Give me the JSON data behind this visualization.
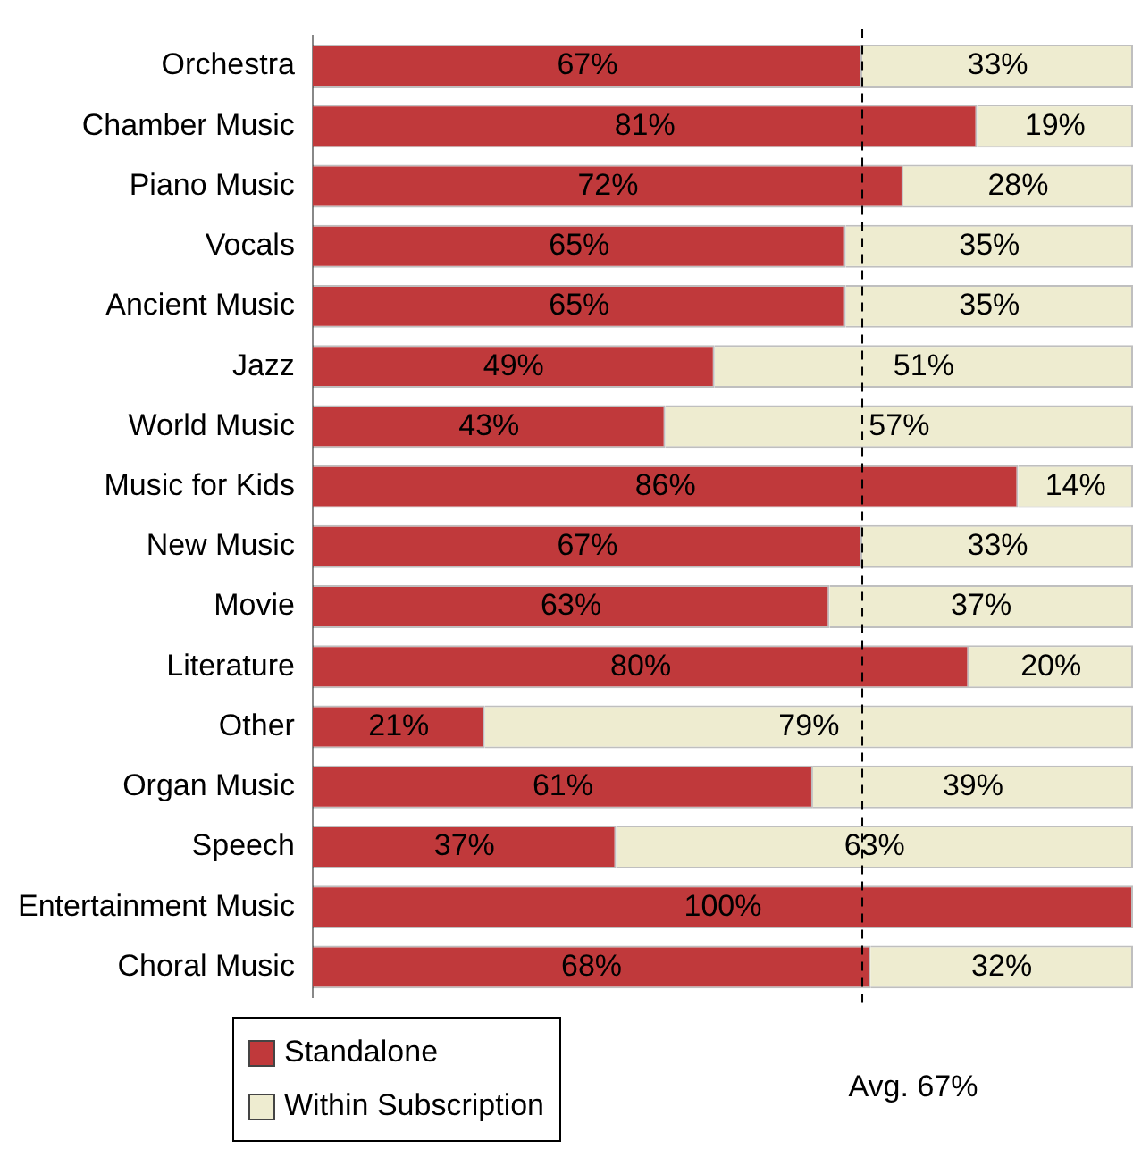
{
  "chart_data": {
    "type": "bar",
    "orientation": "horizontal",
    "stacked": true,
    "categories": [
      "Orchestra",
      "Chamber Music",
      "Piano Music",
      "Vocals",
      "Ancient Music",
      "Jazz",
      "World Music",
      "Music for Kids",
      "New Music",
      "Movie",
      "Literature",
      "Other",
      "Organ Music",
      "Speech",
      "Entertainment Music",
      "Choral Music"
    ],
    "series": [
      {
        "name": "Standalone",
        "color": "#c0393b",
        "values": [
          67,
          81,
          72,
          65,
          65,
          49,
          43,
          86,
          67,
          63,
          80,
          21,
          61,
          37,
          100,
          68
        ],
        "value_labels": [
          "67%",
          "81%",
          "72%",
          "65%",
          "65%",
          "49%",
          "43%",
          "86%",
          "67%",
          "63%",
          "80%",
          "21%",
          "61%",
          "37%",
          "100%",
          "68%"
        ]
      },
      {
        "name": "Within Subscription",
        "color": "#eeecd0",
        "values": [
          33,
          19,
          28,
          35,
          35,
          51,
          57,
          14,
          33,
          37,
          20,
          79,
          39,
          63,
          0,
          32
        ],
        "value_labels": [
          "33%",
          "19%",
          "28%",
          "35%",
          "35%",
          "51%",
          "57%",
          "14%",
          "33%",
          "37%",
          "20%",
          "79%",
          "39%",
          "63%",
          null,
          "32%"
        ]
      }
    ],
    "xlim": [
      0,
      100
    ],
    "tick_labels": "y",
    "grid": false,
    "legend": "bottom",
    "ref_lines": [
      {
        "axis": "x",
        "value": 67,
        "label": "Avg. 67%",
        "color": "#000000",
        "line_style": "dashed"
      }
    ]
  }
}
